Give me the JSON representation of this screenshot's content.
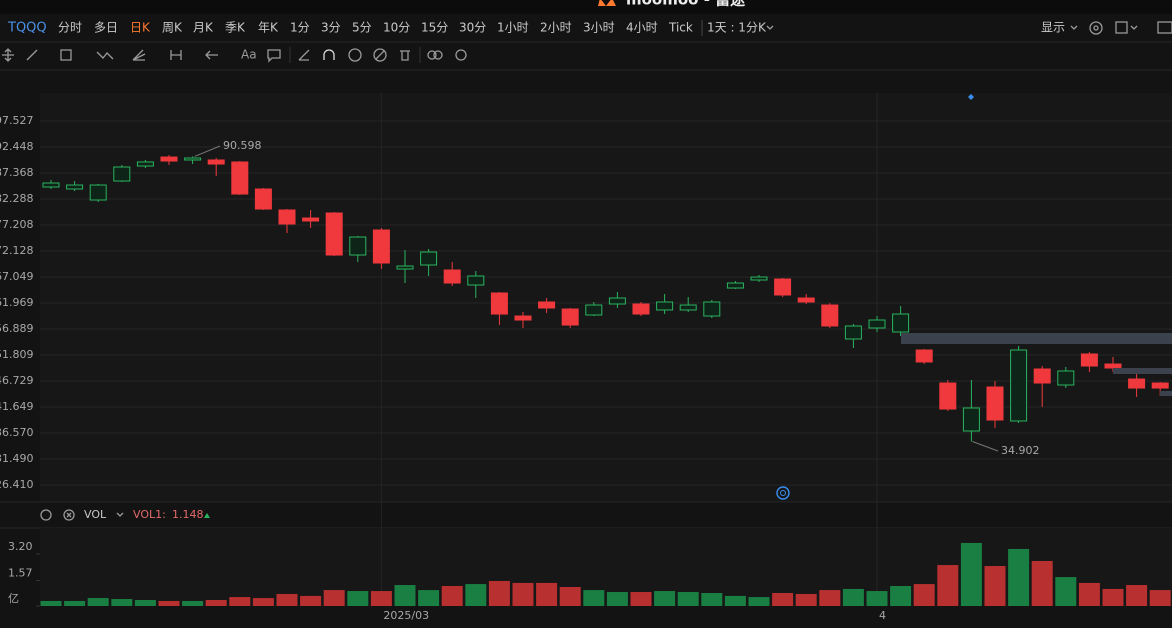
{
  "window_title": "moomoo - 富途",
  "toolbar": {
    "symbol": "TQQQ",
    "periods": [
      "分时",
      "多日",
      "日K",
      "周K",
      "月K",
      "季K",
      "年K",
      "1分",
      "3分",
      "5分",
      "10分",
      "15分",
      "30分",
      "1小时",
      "2小时",
      "3小时",
      "4小时",
      "Tick"
    ],
    "active_index": 2,
    "interval": "1天 : 1分K",
    "display": "显示"
  },
  "drawing_tools": {
    "font_button": "Aa"
  },
  "chart_data": [
    {
      "type": "candlestick",
      "up_color": "#2ab45f",
      "down_color": "#f0393d",
      "categories": [
        null,
        null,
        null,
        null,
        null,
        null,
        null,
        null,
        null,
        null,
        null,
        null,
        null,
        null,
        "2025/03",
        null,
        null,
        null,
        null,
        null,
        null,
        null,
        null,
        null,
        null,
        null,
        null,
        null,
        null,
        null,
        null,
        null,
        null,
        null,
        null,
        "4",
        null,
        null,
        null,
        null,
        null,
        null,
        null,
        null,
        null,
        null,
        null,
        null
      ],
      "open": [
        84.63,
        84.24,
        82.09,
        85.8,
        88.73,
        90.49,
        89.91,
        89.91,
        89.52,
        84.24,
        80.14,
        78.57,
        79.55,
        71.34,
        76.23,
        68.61,
        69.39,
        68.41,
        65.48,
        63.92,
        59.42,
        62.16,
        60.79,
        59.62,
        61.77,
        61.77,
        60.6,
        60.6,
        59.42,
        64.89,
        66.46,
        66.65,
        62.94,
        61.57,
        54.93,
        57.08,
        56.3,
        52.78,
        46.33,
        36.95,
        45.55,
        38.91,
        49.07,
        45.94,
        52.0,
        50.04,
        47.11,
        46.33
      ],
      "high": [
        86.0,
        85.8,
        85.22,
        88.93,
        89.91,
        90.88,
        90.598,
        90.3,
        89.71,
        84.43,
        80.33,
        80.14,
        79.75,
        75.06,
        76.62,
        72.32,
        72.52,
        69.98,
        68.22,
        64.11,
        60.21,
        62.94,
        60.99,
        62.16,
        64.11,
        62.16,
        63.72,
        63.14,
        62.55,
        66.26,
        67.43,
        66.85,
        63.72,
        61.96,
        57.86,
        59.42,
        61.38,
        52.98,
        46.92,
        46.92,
        46.72,
        53.56,
        49.65,
        49.46,
        52.39,
        51.41,
        48.09,
        46.53
      ],
      "low": [
        84.24,
        83.85,
        81.7,
        85.61,
        88.34,
        88.93,
        89.12,
        86.78,
        83.07,
        80.14,
        75.64,
        76.62,
        71.15,
        69.98,
        68.61,
        65.87,
        67.24,
        65.29,
        62.94,
        57.66,
        57.08,
        60.01,
        57.08,
        59.42,
        60.99,
        59.42,
        59.81,
        60.21,
        59.03,
        64.7,
        66.07,
        63.14,
        61.77,
        57.08,
        53.17,
        56.3,
        55.52,
        50.04,
        40.86,
        34.902,
        37.54,
        38.52,
        41.64,
        45.35,
        48.48,
        48.48,
        43.6,
        43.79
      ],
      "close": [
        85.41,
        85.02,
        85.02,
        88.54,
        89.52,
        89.71,
        90.3,
        89.12,
        83.26,
        80.33,
        77.4,
        77.99,
        71.34,
        74.86,
        69.78,
        69.19,
        71.93,
        65.87,
        67.24,
        59.81,
        58.64,
        60.99,
        57.66,
        61.57,
        62.94,
        59.81,
        62.16,
        61.57,
        62.16,
        65.87,
        67.04,
        63.53,
        62.16,
        57.47,
        57.47,
        58.64,
        59.81,
        50.44,
        41.25,
        41.45,
        39.1,
        52.78,
        46.33,
        48.68,
        49.65,
        49.26,
        45.35,
        45.35
      ],
      "ylim": [
        23.08,
        103.0
      ],
      "yticks": [
        97.527,
        92.448,
        87.368,
        82.288,
        77.208,
        72.128,
        67.049,
        61.969,
        56.889,
        51.809,
        46.729,
        41.649,
        {
          "value": 36.57,
          "label": "36.570"
        },
        {
          "value": 31.49,
          "label": "31.490"
        },
        {
          "value": 26.41,
          "label": "26.410"
        }
      ],
      "grid": true
    },
    {
      "type": "bar",
      "name": "VOL",
      "indicator_label": "VOL1:",
      "indicator_value": 1.148,
      "values": [
        0.31,
        0.31,
        0.49,
        0.43,
        0.37,
        0.31,
        0.31,
        0.37,
        0.55,
        0.49,
        0.74,
        0.62,
        0.98,
        0.92,
        0.92,
        1.29,
        0.98,
        1.23,
        1.35,
        1.54,
        1.42,
        1.42,
        1.17,
        0.98,
        0.86,
        0.86,
        0.92,
        0.86,
        0.8,
        0.62,
        0.55,
        0.8,
        0.74,
        0.98,
        1.05,
        0.92,
        1.23,
        1.35,
        2.52,
        3.88,
        2.46,
        3.51,
        2.77,
        1.78,
        1.42,
        1.05,
        1.29,
        0.98
      ],
      "up_color": "#1a7f42",
      "down_color": "#b8302f",
      "ylim": [
        0,
        4.8
      ],
      "yticks": [
        {
          "value": 0,
          "label": "亿"
        },
        1.57,
        {
          "value": 3.2,
          "label": "3.20"
        }
      ]
    }
  ]
}
